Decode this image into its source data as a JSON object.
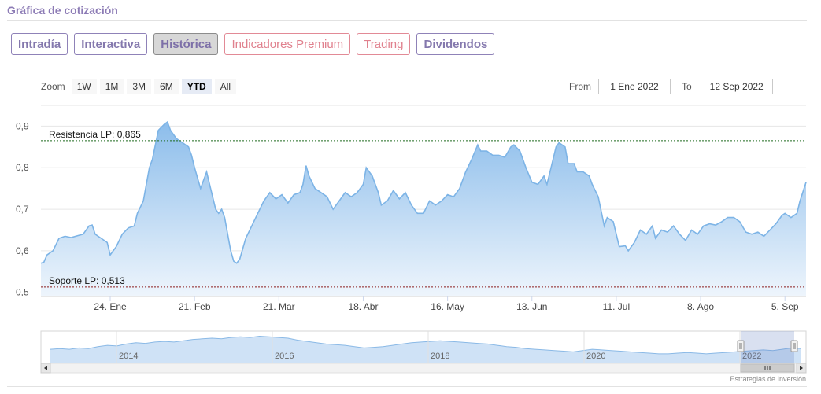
{
  "page": {
    "section_title": "Gráfica de cotización",
    "credit": "Estrategias de Inversión"
  },
  "tabs": [
    {
      "label": "Intradía",
      "active": false,
      "premium": false
    },
    {
      "label": "Interactiva",
      "active": false,
      "premium": false
    },
    {
      "label": "Histórica",
      "active": true,
      "premium": false
    },
    {
      "label": "Indicadores Premium",
      "active": false,
      "premium": true
    },
    {
      "label": "Trading",
      "active": false,
      "premium": true
    },
    {
      "label": "Dividendos",
      "active": false,
      "premium": false
    }
  ],
  "zoom": {
    "label": "Zoom",
    "buttons": [
      {
        "label": "1W",
        "active": false
      },
      {
        "label": "1M",
        "active": false
      },
      {
        "label": "3M",
        "active": false
      },
      {
        "label": "6M",
        "active": false
      },
      {
        "label": "YTD",
        "active": true
      },
      {
        "label": "All",
        "active": false
      }
    ]
  },
  "range": {
    "from_label": "From",
    "from_value": "1 Ene 2022",
    "to_label": "To",
    "to_value": "12 Sep 2022"
  },
  "chart_data": {
    "type": "area",
    "title": "",
    "xlabel": "",
    "ylabel": "",
    "ylim": [
      0.49,
      0.95
    ],
    "yticks": [
      {
        "value": 0.5,
        "label": "0,5"
      },
      {
        "value": 0.6,
        "label": "0,6"
      },
      {
        "value": 0.7,
        "label": "0,7"
      },
      {
        "value": 0.8,
        "label": "0,8"
      },
      {
        "value": 0.9,
        "label": "0,9"
      }
    ],
    "xrange": [
      "2022-01-01",
      "2022-09-12"
    ],
    "xticks": [
      {
        "date": "2022-01-24",
        "label": "24. Ene"
      },
      {
        "date": "2022-02-21",
        "label": "21. Feb"
      },
      {
        "date": "2022-03-21",
        "label": "21. Mar"
      },
      {
        "date": "2022-04-18",
        "label": "18. Abr"
      },
      {
        "date": "2022-05-16",
        "label": "16. May"
      },
      {
        "date": "2022-06-13",
        "label": "13. Jun"
      },
      {
        "date": "2022-07-11",
        "label": "11. Jul"
      },
      {
        "date": "2022-08-08",
        "label": "8. Ago"
      },
      {
        "date": "2022-09-05",
        "label": "5. Sep"
      }
    ],
    "grid": true,
    "colors": {
      "line": "#7db4e6",
      "fill_top": "#8cbdeb",
      "fill_bottom": "#eef5fc",
      "resistance": "#1e6b1e",
      "support": "#8a1c1c"
    },
    "reference_lines": [
      {
        "label": "Resistencia LP: 0,865",
        "value": 0.865,
        "kind": "resistance"
      },
      {
        "label": "Soporte LP: 0,513",
        "value": 0.513,
        "kind": "support"
      }
    ],
    "series": [
      {
        "points": [
          [
            "2022-01-01",
            0.57
          ],
          [
            "2022-01-02",
            0.573
          ],
          [
            "2022-01-03",
            0.59
          ],
          [
            "2022-01-05",
            0.6
          ],
          [
            "2022-01-07",
            0.63
          ],
          [
            "2022-01-09",
            0.635
          ],
          [
            "2022-01-11",
            0.632
          ],
          [
            "2022-01-13",
            0.636
          ],
          [
            "2022-01-15",
            0.64
          ],
          [
            "2022-01-17",
            0.66
          ],
          [
            "2022-01-18",
            0.662
          ],
          [
            "2022-01-19",
            0.64
          ],
          [
            "2022-01-21",
            0.63
          ],
          [
            "2022-01-23",
            0.62
          ],
          [
            "2022-01-24",
            0.59
          ],
          [
            "2022-01-26",
            0.61
          ],
          [
            "2022-01-28",
            0.64
          ],
          [
            "2022-01-30",
            0.655
          ],
          [
            "2022-02-01",
            0.66
          ],
          [
            "2022-02-02",
            0.69
          ],
          [
            "2022-02-04",
            0.72
          ],
          [
            "2022-02-05",
            0.76
          ],
          [
            "2022-02-06",
            0.8
          ],
          [
            "2022-02-07",
            0.82
          ],
          [
            "2022-02-09",
            0.89
          ],
          [
            "2022-02-11",
            0.905
          ],
          [
            "2022-02-12",
            0.91
          ],
          [
            "2022-02-13",
            0.89
          ],
          [
            "2022-02-15",
            0.87
          ],
          [
            "2022-02-17",
            0.86
          ],
          [
            "2022-02-19",
            0.85
          ],
          [
            "2022-02-20",
            0.83
          ],
          [
            "2022-02-21",
            0.8
          ],
          [
            "2022-02-23",
            0.75
          ],
          [
            "2022-02-25",
            0.79
          ],
          [
            "2022-02-26",
            0.76
          ],
          [
            "2022-02-28",
            0.7
          ],
          [
            "2022-03-01",
            0.69
          ],
          [
            "2022-03-02",
            0.7
          ],
          [
            "2022-03-03",
            0.68
          ],
          [
            "2022-03-05",
            0.6
          ],
          [
            "2022-03-06",
            0.575
          ],
          [
            "2022-03-07",
            0.57
          ],
          [
            "2022-03-08",
            0.58
          ],
          [
            "2022-03-10",
            0.63
          ],
          [
            "2022-03-12",
            0.66
          ],
          [
            "2022-03-14",
            0.69
          ],
          [
            "2022-03-16",
            0.72
          ],
          [
            "2022-03-18",
            0.74
          ],
          [
            "2022-03-20",
            0.725
          ],
          [
            "2022-03-22",
            0.735
          ],
          [
            "2022-03-24",
            0.715
          ],
          [
            "2022-03-26",
            0.735
          ],
          [
            "2022-03-28",
            0.74
          ],
          [
            "2022-03-29",
            0.76
          ],
          [
            "2022-03-30",
            0.805
          ],
          [
            "2022-03-31",
            0.78
          ],
          [
            "2022-04-02",
            0.75
          ],
          [
            "2022-04-04",
            0.74
          ],
          [
            "2022-04-06",
            0.73
          ],
          [
            "2022-04-08",
            0.7
          ],
          [
            "2022-04-10",
            0.72
          ],
          [
            "2022-04-12",
            0.74
          ],
          [
            "2022-04-14",
            0.73
          ],
          [
            "2022-04-16",
            0.74
          ],
          [
            "2022-04-18",
            0.76
          ],
          [
            "2022-04-19",
            0.8
          ],
          [
            "2022-04-21",
            0.78
          ],
          [
            "2022-04-23",
            0.74
          ],
          [
            "2022-04-24",
            0.71
          ],
          [
            "2022-04-26",
            0.72
          ],
          [
            "2022-04-28",
            0.745
          ],
          [
            "2022-04-30",
            0.725
          ],
          [
            "2022-05-02",
            0.74
          ],
          [
            "2022-05-04",
            0.71
          ],
          [
            "2022-05-06",
            0.69
          ],
          [
            "2022-05-08",
            0.69
          ],
          [
            "2022-05-10",
            0.72
          ],
          [
            "2022-05-12",
            0.71
          ],
          [
            "2022-05-14",
            0.72
          ],
          [
            "2022-05-16",
            0.735
          ],
          [
            "2022-05-18",
            0.73
          ],
          [
            "2022-05-20",
            0.75
          ],
          [
            "2022-05-22",
            0.79
          ],
          [
            "2022-05-24",
            0.82
          ],
          [
            "2022-05-26",
            0.855
          ],
          [
            "2022-05-27",
            0.84
          ],
          [
            "2022-05-29",
            0.84
          ],
          [
            "2022-05-31",
            0.83
          ],
          [
            "2022-06-02",
            0.83
          ],
          [
            "2022-06-04",
            0.825
          ],
          [
            "2022-06-06",
            0.85
          ],
          [
            "2022-06-07",
            0.855
          ],
          [
            "2022-06-09",
            0.84
          ],
          [
            "2022-06-11",
            0.8
          ],
          [
            "2022-06-13",
            0.765
          ],
          [
            "2022-06-15",
            0.76
          ],
          [
            "2022-06-17",
            0.78
          ],
          [
            "2022-06-18",
            0.76
          ],
          [
            "2022-06-20",
            0.82
          ],
          [
            "2022-06-21",
            0.85
          ],
          [
            "2022-06-22",
            0.86
          ],
          [
            "2022-06-24",
            0.85
          ],
          [
            "2022-06-25",
            0.81
          ],
          [
            "2022-06-27",
            0.81
          ],
          [
            "2022-06-28",
            0.79
          ],
          [
            "2022-06-30",
            0.79
          ],
          [
            "2022-07-02",
            0.78
          ],
          [
            "2022-07-03",
            0.76
          ],
          [
            "2022-07-05",
            0.73
          ],
          [
            "2022-07-07",
            0.66
          ],
          [
            "2022-07-08",
            0.68
          ],
          [
            "2022-07-10",
            0.67
          ],
          [
            "2022-07-12",
            0.61
          ],
          [
            "2022-07-14",
            0.612
          ],
          [
            "2022-07-15",
            0.6
          ],
          [
            "2022-07-17",
            0.62
          ],
          [
            "2022-07-19",
            0.65
          ],
          [
            "2022-07-21",
            0.64
          ],
          [
            "2022-07-23",
            0.66
          ],
          [
            "2022-07-24",
            0.63
          ],
          [
            "2022-07-26",
            0.65
          ],
          [
            "2022-07-28",
            0.645
          ],
          [
            "2022-07-30",
            0.66
          ],
          [
            "2022-08-01",
            0.64
          ],
          [
            "2022-08-03",
            0.625
          ],
          [
            "2022-08-05",
            0.65
          ],
          [
            "2022-08-07",
            0.64
          ],
          [
            "2022-08-09",
            0.66
          ],
          [
            "2022-08-11",
            0.665
          ],
          [
            "2022-08-13",
            0.662
          ],
          [
            "2022-08-15",
            0.67
          ],
          [
            "2022-08-17",
            0.68
          ],
          [
            "2022-08-19",
            0.68
          ],
          [
            "2022-08-21",
            0.67
          ],
          [
            "2022-08-23",
            0.645
          ],
          [
            "2022-08-25",
            0.64
          ],
          [
            "2022-08-27",
            0.645
          ],
          [
            "2022-08-29",
            0.635
          ],
          [
            "2022-08-31",
            0.65
          ],
          [
            "2022-09-02",
            0.665
          ],
          [
            "2022-09-04",
            0.685
          ],
          [
            "2022-09-05",
            0.69
          ],
          [
            "2022-09-07",
            0.68
          ],
          [
            "2022-09-09",
            0.69
          ],
          [
            "2022-09-10",
            0.72
          ],
          [
            "2022-09-12",
            0.765
          ]
        ]
      }
    ]
  },
  "navigator": {
    "labels": [
      "2014",
      "2016",
      "2018",
      "2020",
      "2022"
    ],
    "series": [
      0.62,
      0.63,
      0.62,
      0.64,
      0.63,
      0.66,
      0.68,
      0.67,
      0.7,
      0.72,
      0.71,
      0.73,
      0.74,
      0.73,
      0.75,
      0.77,
      0.78,
      0.79,
      0.78,
      0.8,
      0.81,
      0.8,
      0.82,
      0.81,
      0.8,
      0.79,
      0.76,
      0.74,
      0.72,
      0.7,
      0.69,
      0.68,
      0.66,
      0.64,
      0.65,
      0.66,
      0.68,
      0.7,
      0.72,
      0.73,
      0.74,
      0.75,
      0.74,
      0.73,
      0.72,
      0.71,
      0.7,
      0.68,
      0.66,
      0.65,
      0.63,
      0.62,
      0.61,
      0.6,
      0.59,
      0.58,
      0.6,
      0.62,
      0.61,
      0.6,
      0.59,
      0.58,
      0.57,
      0.56,
      0.55,
      0.55,
      0.56,
      0.57,
      0.56,
      0.55,
      0.56,
      0.57,
      0.58,
      0.59,
      0.6,
      0.61,
      0.6,
      0.62,
      0.64,
      0.63
    ],
    "selection": [
      "2022-01-01",
      "2022-09-12"
    ]
  }
}
